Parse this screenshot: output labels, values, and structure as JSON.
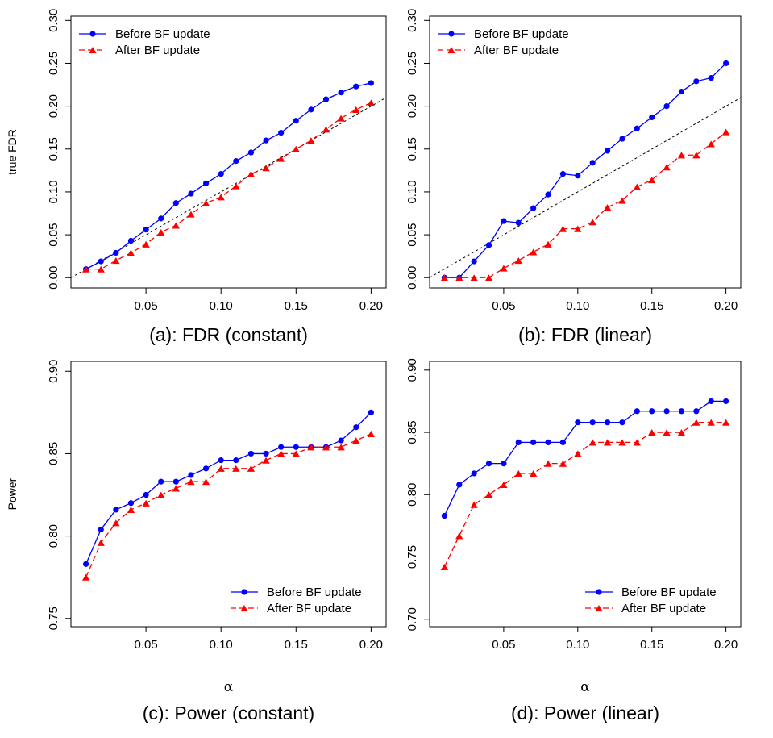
{
  "series_names": [
    "Before BF update",
    "After BF update"
  ],
  "colors": {
    "before": "#0000ff",
    "after": "#ff0000",
    "reference": "#000000"
  },
  "chart_data": [
    {
      "id": "a",
      "type": "line",
      "title": "(a): FDR (constant)",
      "xlabel": "",
      "ylabel": "true FDR",
      "xlim": [
        0.0,
        0.21
      ],
      "ylim": [
        -0.012,
        0.305
      ],
      "xticks": [
        "0.05",
        "0.10",
        "0.15",
        "0.20"
      ],
      "yticks": [
        "0.00",
        "0.05",
        "0.10",
        "0.15",
        "0.20",
        "0.25",
        "0.30"
      ],
      "legend_position": "top-left",
      "reference_line": "y = x",
      "x": [
        0.01,
        0.02,
        0.03,
        0.04,
        0.05,
        0.06,
        0.07,
        0.08,
        0.09,
        0.1,
        0.11,
        0.12,
        0.13,
        0.14,
        0.15,
        0.16,
        0.17,
        0.18,
        0.19,
        0.2
      ],
      "series": [
        {
          "name": "Before BF update",
          "key": "before",
          "values": [
            0.01,
            0.019,
            0.029,
            0.043,
            0.056,
            0.069,
            0.087,
            0.098,
            0.11,
            0.121,
            0.136,
            0.146,
            0.16,
            0.169,
            0.183,
            0.196,
            0.208,
            0.216,
            0.223,
            0.227
          ]
        },
        {
          "name": "After BF update",
          "key": "after",
          "values": [
            0.01,
            0.01,
            0.02,
            0.029,
            0.039,
            0.053,
            0.061,
            0.074,
            0.087,
            0.094,
            0.107,
            0.121,
            0.128,
            0.139,
            0.15,
            0.16,
            0.173,
            0.186,
            0.196,
            0.204
          ]
        }
      ]
    },
    {
      "id": "b",
      "type": "line",
      "title": "(b): FDR (linear)",
      "xlabel": "",
      "ylabel": "",
      "xlim": [
        0.0,
        0.21
      ],
      "ylim": [
        -0.012,
        0.305
      ],
      "xticks": [
        "0.05",
        "0.10",
        "0.15",
        "0.20"
      ],
      "yticks": [
        "0.00",
        "0.05",
        "0.10",
        "0.15",
        "0.20",
        "0.25",
        "0.30"
      ],
      "legend_position": "top-left",
      "reference_line": "y = x",
      "x": [
        0.01,
        0.02,
        0.03,
        0.04,
        0.05,
        0.06,
        0.07,
        0.08,
        0.09,
        0.1,
        0.11,
        0.12,
        0.13,
        0.14,
        0.15,
        0.16,
        0.17,
        0.18,
        0.19,
        0.2
      ],
      "series": [
        {
          "name": "Before BF update",
          "key": "before",
          "values": [
            0.0,
            0.0,
            0.019,
            0.038,
            0.066,
            0.064,
            0.081,
            0.097,
            0.121,
            0.119,
            0.134,
            0.148,
            0.162,
            0.174,
            0.187,
            0.2,
            0.217,
            0.229,
            0.233,
            0.25
          ]
        },
        {
          "name": "After BF update",
          "key": "after",
          "values": [
            0.0,
            0.0,
            0.0,
            0.0,
            0.011,
            0.02,
            0.03,
            0.039,
            0.057,
            0.057,
            0.065,
            0.082,
            0.09,
            0.106,
            0.114,
            0.129,
            0.143,
            0.143,
            0.156,
            0.17
          ]
        }
      ]
    },
    {
      "id": "c",
      "type": "line",
      "title": "(c): Power (constant)",
      "xlabel": "α",
      "ylabel": "Power",
      "xlim": [
        0.0,
        0.21
      ],
      "ylim": [
        0.745,
        0.906
      ],
      "xticks": [
        "0.05",
        "0.10",
        "0.15",
        "0.20"
      ],
      "yticks": [
        "0.75",
        "0.80",
        "0.85",
        "0.90"
      ],
      "legend_position": "bottom-right",
      "reference_line": "",
      "x": [
        0.01,
        0.02,
        0.03,
        0.04,
        0.05,
        0.06,
        0.07,
        0.08,
        0.09,
        0.1,
        0.11,
        0.12,
        0.13,
        0.14,
        0.15,
        0.16,
        0.17,
        0.18,
        0.19,
        0.2
      ],
      "series": [
        {
          "name": "Before BF update",
          "key": "before",
          "values": [
            0.783,
            0.804,
            0.816,
            0.82,
            0.825,
            0.833,
            0.833,
            0.837,
            0.841,
            0.846,
            0.846,
            0.85,
            0.85,
            0.854,
            0.854,
            0.854,
            0.854,
            0.858,
            0.866,
            0.875
          ]
        },
        {
          "name": "After BF update",
          "key": "after",
          "values": [
            0.775,
            0.796,
            0.808,
            0.816,
            0.82,
            0.825,
            0.829,
            0.833,
            0.833,
            0.841,
            0.841,
            0.841,
            0.846,
            0.85,
            0.85,
            0.854,
            0.854,
            0.854,
            0.858,
            0.862
          ]
        }
      ]
    },
    {
      "id": "d",
      "type": "line",
      "title": "(d): Power (linear)",
      "xlabel": "α",
      "ylabel": "",
      "xlim": [
        0.0,
        0.21
      ],
      "ylim": [
        0.694,
        0.907
      ],
      "xticks": [
        "0.05",
        "0.10",
        "0.15",
        "0.20"
      ],
      "yticks": [
        "0.70",
        "0.75",
        "0.80",
        "0.85",
        "0.90"
      ],
      "legend_position": "bottom-right",
      "reference_line": "",
      "x": [
        0.01,
        0.02,
        0.03,
        0.04,
        0.05,
        0.06,
        0.07,
        0.08,
        0.09,
        0.1,
        0.11,
        0.12,
        0.13,
        0.14,
        0.15,
        0.16,
        0.17,
        0.18,
        0.19,
        0.2
      ],
      "series": [
        {
          "name": "Before BF update",
          "key": "before",
          "values": [
            0.783,
            0.808,
            0.817,
            0.825,
            0.825,
            0.842,
            0.842,
            0.842,
            0.842,
            0.858,
            0.858,
            0.858,
            0.858,
            0.867,
            0.867,
            0.867,
            0.867,
            0.867,
            0.875,
            0.875
          ]
        },
        {
          "name": "After BF update",
          "key": "after",
          "values": [
            0.742,
            0.767,
            0.792,
            0.8,
            0.808,
            0.817,
            0.817,
            0.825,
            0.825,
            0.833,
            0.842,
            0.842,
            0.842,
            0.842,
            0.85,
            0.85,
            0.85,
            0.858,
            0.858,
            0.858
          ]
        }
      ]
    }
  ]
}
